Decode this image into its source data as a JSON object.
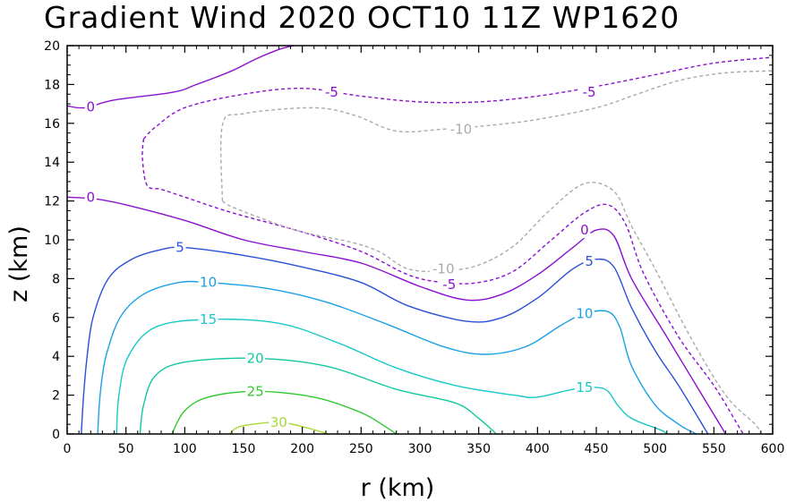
{
  "chart_data": {
    "type": "contour",
    "title": "Gradient Wind 2020 OCT10 11Z   WP1620",
    "xlabel": "r (km)",
    "ylabel": "z (km)",
    "xlim": [
      0,
      600
    ],
    "ylim": [
      0,
      20
    ],
    "xticks": [
      "0",
      "50",
      "100",
      "150",
      "200",
      "250",
      "300",
      "350",
      "400",
      "450",
      "500",
      "550",
      "600"
    ],
    "yticks": [
      "0",
      "2",
      "4",
      "6",
      "8",
      "10",
      "12",
      "14",
      "16",
      "18",
      "20"
    ],
    "contours": [
      {
        "level": "0",
        "color": "#8a10d0",
        "dashed": false,
        "labels": [
          {
            "r": 20,
            "z": 16.85
          },
          {
            "r": 20,
            "z": 12.2
          },
          {
            "r": 440,
            "z": 10.5
          }
        ],
        "points": [
          [
            0,
            16.9
          ],
          [
            15,
            16.8
          ],
          [
            40,
            17.2
          ],
          [
            90,
            17.6
          ],
          [
            110,
            18
          ],
          [
            140,
            18.7
          ],
          [
            160,
            19.3
          ],
          [
            180,
            19.8
          ],
          [
            193,
            20
          ]
        ]
      },
      {
        "level": "0",
        "color": "#8a10d0",
        "dashed": false,
        "labels": [],
        "points": [
          [
            0,
            12.2
          ],
          [
            25,
            12.1
          ],
          [
            50,
            11.8
          ],
          [
            100,
            11.0
          ],
          [
            150,
            10.0
          ],
          [
            200,
            9.4
          ],
          [
            250,
            8.8
          ],
          [
            300,
            7.6
          ],
          [
            340,
            6.9
          ],
          [
            370,
            7.2
          ],
          [
            400,
            8.2
          ],
          [
            430,
            9.6
          ],
          [
            450,
            10.5
          ],
          [
            465,
            10.2
          ],
          [
            480,
            8.0
          ],
          [
            510,
            5.0
          ],
          [
            540,
            2.0
          ],
          [
            555,
            0.5
          ],
          [
            560,
            0
          ]
        ]
      },
      {
        "level": "-5",
        "color": "#8a10d0",
        "dashed": true,
        "labels": [
          {
            "r": 225,
            "z": 17.6
          },
          {
            "r": 444,
            "z": 17.6
          },
          {
            "r": 325,
            "z": 7.7
          }
        ],
        "points": [
          [
            65,
            15.2
          ],
          [
            75,
            15.8
          ],
          [
            100,
            16.8
          ],
          [
            150,
            17.5
          ],
          [
            200,
            17.8
          ],
          [
            250,
            17.4
          ],
          [
            300,
            17.1
          ],
          [
            350,
            17.1
          ],
          [
            400,
            17.4
          ],
          [
            450,
            17.9
          ],
          [
            500,
            18.5
          ],
          [
            550,
            19.1
          ],
          [
            600,
            19.4
          ]
        ]
      },
      {
        "level": "-5",
        "color": "#8a10d0",
        "dashed": true,
        "labels": [],
        "points": [
          [
            65,
            15.2
          ],
          [
            64,
            14.2
          ],
          [
            68,
            12.8
          ],
          [
            80,
            12.6
          ],
          [
            100,
            12.2
          ],
          [
            140,
            11.4
          ],
          [
            200,
            10.4
          ],
          [
            250,
            9.4
          ],
          [
            290,
            8.2
          ],
          [
            320,
            7.8
          ],
          [
            350,
            7.8
          ],
          [
            380,
            8.4
          ],
          [
            410,
            9.9
          ],
          [
            440,
            11.4
          ],
          [
            460,
            11.8
          ],
          [
            475,
            10.8
          ],
          [
            490,
            8.3
          ],
          [
            520,
            5.0
          ],
          [
            550,
            2.5
          ],
          [
            570,
            0.5
          ],
          [
            575,
            0
          ]
        ]
      },
      {
        "level": "-10",
        "color": "#aaaaaa",
        "dashed": true,
        "labels": [
          {
            "r": 335,
            "z": 15.7
          },
          {
            "r": 320,
            "z": 8.5
          }
        ],
        "points": [
          [
            132,
            12.0
          ],
          [
            132,
            15.9
          ],
          [
            150,
            16.5
          ],
          [
            210,
            16.8
          ],
          [
            245,
            16.4
          ],
          [
            280,
            15.6
          ],
          [
            320,
            15.7
          ],
          [
            360,
            15.9
          ],
          [
            400,
            16.2
          ],
          [
            450,
            16.8
          ],
          [
            480,
            17.4
          ],
          [
            520,
            18.2
          ],
          [
            560,
            18.6
          ],
          [
            600,
            18.7
          ]
        ]
      },
      {
        "level": "-10",
        "color": "#aaaaaa",
        "dashed": true,
        "labels": [],
        "points": [
          [
            132,
            12.0
          ],
          [
            140,
            11.7
          ],
          [
            170,
            11.0
          ],
          [
            200,
            10.4
          ],
          [
            240,
            9.9
          ],
          [
            265,
            9.4
          ],
          [
            290,
            8.5
          ],
          [
            320,
            8.4
          ],
          [
            350,
            8.7
          ],
          [
            380,
            9.7
          ],
          [
            410,
            11.5
          ],
          [
            440,
            12.9
          ],
          [
            465,
            12.5
          ],
          [
            480,
            10.7
          ],
          [
            500,
            8.5
          ],
          [
            530,
            5.0
          ],
          [
            560,
            2.0
          ],
          [
            585,
            0.5
          ],
          [
            590,
            0
          ]
        ]
      },
      {
        "level": "5",
        "color": "#2850d8",
        "dashed": false,
        "labels": [
          {
            "r": 96,
            "z": 9.6
          },
          {
            "r": 444,
            "z": 8.9
          }
        ],
        "points": [
          [
            12,
            0
          ],
          [
            14,
            2
          ],
          [
            17,
            4
          ],
          [
            22,
            6
          ],
          [
            35,
            8
          ],
          [
            55,
            9.0
          ],
          [
            80,
            9.5
          ],
          [
            100,
            9.6
          ],
          [
            150,
            9.2
          ],
          [
            200,
            8.6
          ],
          [
            250,
            7.8
          ],
          [
            290,
            6.6
          ],
          [
            340,
            5.8
          ],
          [
            370,
            6.0
          ],
          [
            400,
            7.0
          ],
          [
            430,
            8.5
          ],
          [
            450,
            9.0
          ],
          [
            465,
            8.6
          ],
          [
            480,
            6.5
          ],
          [
            500,
            4.3
          ],
          [
            520,
            2.5
          ],
          [
            540,
            0.5
          ],
          [
            545,
            0
          ]
        ]
      },
      {
        "level": "10",
        "color": "#1aa0e8",
        "dashed": false,
        "labels": [
          {
            "r": 120,
            "z": 7.8
          },
          {
            "r": 440,
            "z": 6.2
          }
        ],
        "points": [
          [
            26,
            0
          ],
          [
            28,
            2
          ],
          [
            33,
            4
          ],
          [
            45,
            6
          ],
          [
            65,
            7.2
          ],
          [
            95,
            7.8
          ],
          [
            120,
            7.8
          ],
          [
            170,
            7.5
          ],
          [
            220,
            6.8
          ],
          [
            270,
            5.7
          ],
          [
            320,
            4.5
          ],
          [
            355,
            4.1
          ],
          [
            390,
            4.5
          ],
          [
            420,
            5.6
          ],
          [
            440,
            6.2
          ],
          [
            460,
            6.3
          ],
          [
            470,
            5.5
          ],
          [
            480,
            3.5
          ],
          [
            500,
            1.5
          ],
          [
            520,
            0.5
          ],
          [
            535,
            0
          ]
        ]
      },
      {
        "level": "15",
        "color": "#18c8c8",
        "dashed": false,
        "labels": [
          {
            "r": 120,
            "z": 5.9
          },
          {
            "r": 440,
            "z": 2.4
          }
        ],
        "points": [
          [
            42,
            0
          ],
          [
            44,
            2
          ],
          [
            52,
            4
          ],
          [
            75,
            5.5
          ],
          [
            120,
            5.9
          ],
          [
            180,
            5.7
          ],
          [
            230,
            4.7
          ],
          [
            280,
            3.4
          ],
          [
            330,
            2.5
          ],
          [
            380,
            2.0
          ],
          [
            400,
            1.9
          ],
          [
            430,
            2.3
          ],
          [
            450,
            2.4
          ],
          [
            460,
            2.2
          ],
          [
            468,
            1.5
          ],
          [
            480,
            0.8
          ],
          [
            505,
            0.2
          ],
          [
            510,
            0
          ]
        ]
      },
      {
        "level": "20",
        "color": "#10c8a0",
        "dashed": false,
        "labels": [
          {
            "r": 160,
            "z": 3.9
          }
        ],
        "points": [
          [
            62,
            0
          ],
          [
            65,
            1.5
          ],
          [
            75,
            3.0
          ],
          [
            100,
            3.7
          ],
          [
            160,
            3.9
          ],
          [
            220,
            3.5
          ],
          [
            280,
            2.3
          ],
          [
            330,
            1.6
          ],
          [
            350,
            0.8
          ],
          [
            365,
            0
          ]
        ]
      },
      {
        "level": "25",
        "color": "#30c830",
        "dashed": false,
        "labels": [
          {
            "r": 160,
            "z": 2.2
          }
        ],
        "points": [
          [
            89,
            0
          ],
          [
            100,
            1.2
          ],
          [
            120,
            1.9
          ],
          [
            160,
            2.2
          ],
          [
            210,
            1.9
          ],
          [
            250,
            1.1
          ],
          [
            270,
            0.4
          ],
          [
            280,
            0
          ]
        ]
      },
      {
        "level": "30",
        "color": "#a8d838",
        "dashed": false,
        "labels": [
          {
            "r": 180,
            "z": 0.6
          }
        ],
        "points": [
          [
            138,
            0
          ],
          [
            148,
            0.4
          ],
          [
            180,
            0.6
          ],
          [
            205,
            0.3
          ],
          [
            222,
            0
          ]
        ]
      }
    ]
  }
}
